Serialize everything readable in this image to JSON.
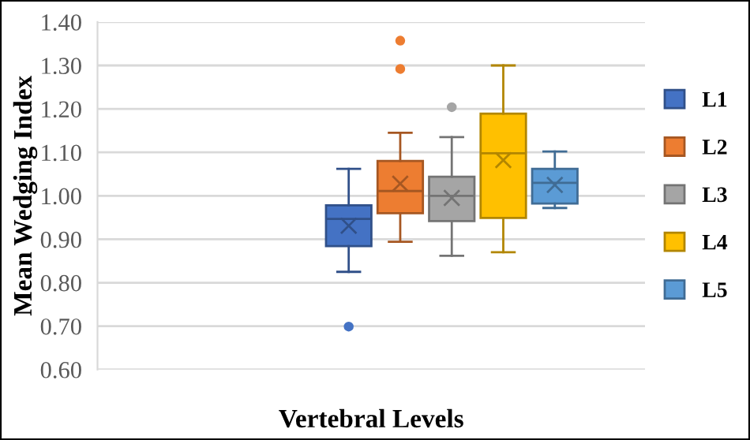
{
  "chart_data": {
    "type": "box",
    "xlabel": "Vertebral Levels",
    "ylabel": "Mean Wedging Index",
    "categories": [
      null
    ],
    "series": [
      {
        "name": "L1",
        "color": "#4472c4",
        "boxes": [
          {
            "low": 0.825,
            "q1": 0.884,
            "median": 0.947,
            "q3": 0.978,
            "high": 1.062,
            "mean": 0.931,
            "outliers": [
              0.699
            ]
          }
        ]
      },
      {
        "name": "L2",
        "color": "#ed7d31",
        "boxes": [
          {
            "low": 0.894,
            "q1": 0.96,
            "median": 1.011,
            "q3": 1.08,
            "high": 1.145,
            "mean": 1.028,
            "outliers": [
              1.292,
              1.357
            ]
          }
        ]
      },
      {
        "name": "L3",
        "color": "#a5a5a5",
        "boxes": [
          {
            "low": 0.862,
            "q1": 0.942,
            "median": 1.0,
            "q3": 1.044,
            "high": 1.135,
            "mean": 0.995,
            "outliers": [
              1.204
            ]
          }
        ]
      },
      {
        "name": "L4",
        "color": "#ffc000",
        "boxes": [
          {
            "low": 0.87,
            "q1": 0.949,
            "median": 1.098,
            "q3": 1.189,
            "high": 1.3,
            "mean": 1.082
          }
        ]
      },
      {
        "name": "L5",
        "color": "#5b9bd5",
        "boxes": [
          {
            "low": 0.972,
            "q1": 0.982,
            "median": 1.03,
            "q3": 1.062,
            "high": 1.102,
            "mean": 1.025
          }
        ]
      }
    ],
    "ylim": [
      0.6,
      1.4
    ],
    "yticks": [
      {
        "value": 0.6,
        "label": "0.60"
      },
      {
        "value": 0.7,
        "label": "0.70"
      },
      {
        "value": 0.8,
        "label": "0.80"
      },
      {
        "value": 0.9,
        "label": "0.90"
      },
      {
        "value": 1.0,
        "label": "1.00"
      },
      {
        "value": 1.1,
        "label": "1.10"
      },
      {
        "value": 1.2,
        "label": "1.20"
      },
      {
        "value": 1.3,
        "label": "1.30"
      },
      {
        "value": 1.4,
        "label": "1.40"
      }
    ],
    "tick_labels": "y",
    "grid": "y",
    "legend": "right"
  }
}
